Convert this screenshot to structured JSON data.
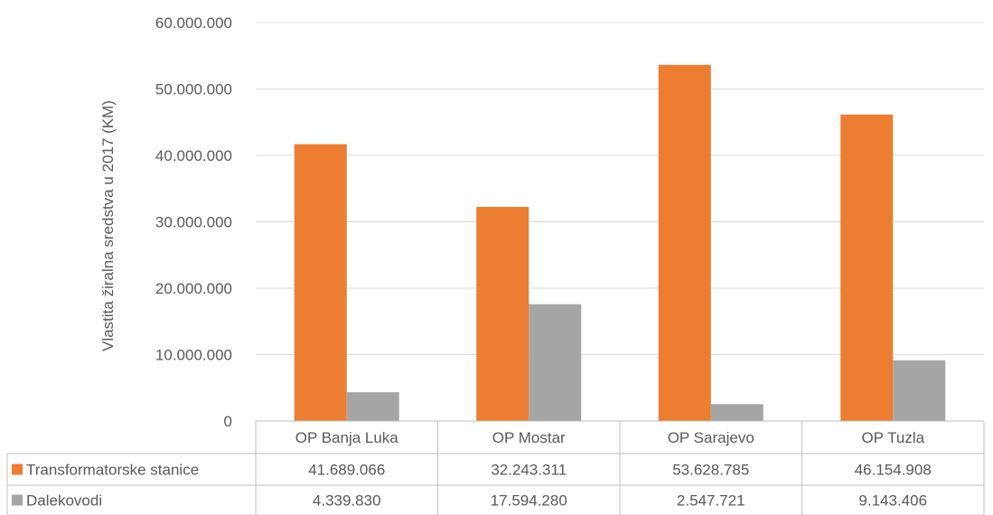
{
  "chart_data": {
    "type": "bar",
    "title": "",
    "xlabel": "",
    "ylabel": "Vlastita žiralna sredstva u 2017 (KM)",
    "ylim": [
      0,
      60000000
    ],
    "yticks": [
      0,
      10000000,
      20000000,
      30000000,
      40000000,
      50000000,
      60000000
    ],
    "ytick_labels": [
      "0",
      "10.000.000",
      "20.000.000",
      "30.000.000",
      "40.000.000",
      "50.000.000",
      "60.000.000"
    ],
    "grid": true,
    "legend": "data-table",
    "categories": [
      "OP Banja Luka",
      "OP Mostar",
      "OP Sarajevo",
      "OP Tuzla"
    ],
    "series": [
      {
        "name": "Transformatorske stanice",
        "color": "#ED7D31",
        "values": [
          41689066,
          32243311,
          53628785,
          46154908
        ],
        "value_labels": [
          "41.689.066",
          "32.243.311",
          "53.628.785",
          "46.154.908"
        ]
      },
      {
        "name": "Dalekovodi",
        "color": "#A5A5A5",
        "values": [
          4339830,
          17594280,
          2547721,
          9143406
        ],
        "value_labels": [
          "4.339.830",
          "17.594.280",
          "2.547.721",
          "9.143.406"
        ]
      }
    ]
  }
}
